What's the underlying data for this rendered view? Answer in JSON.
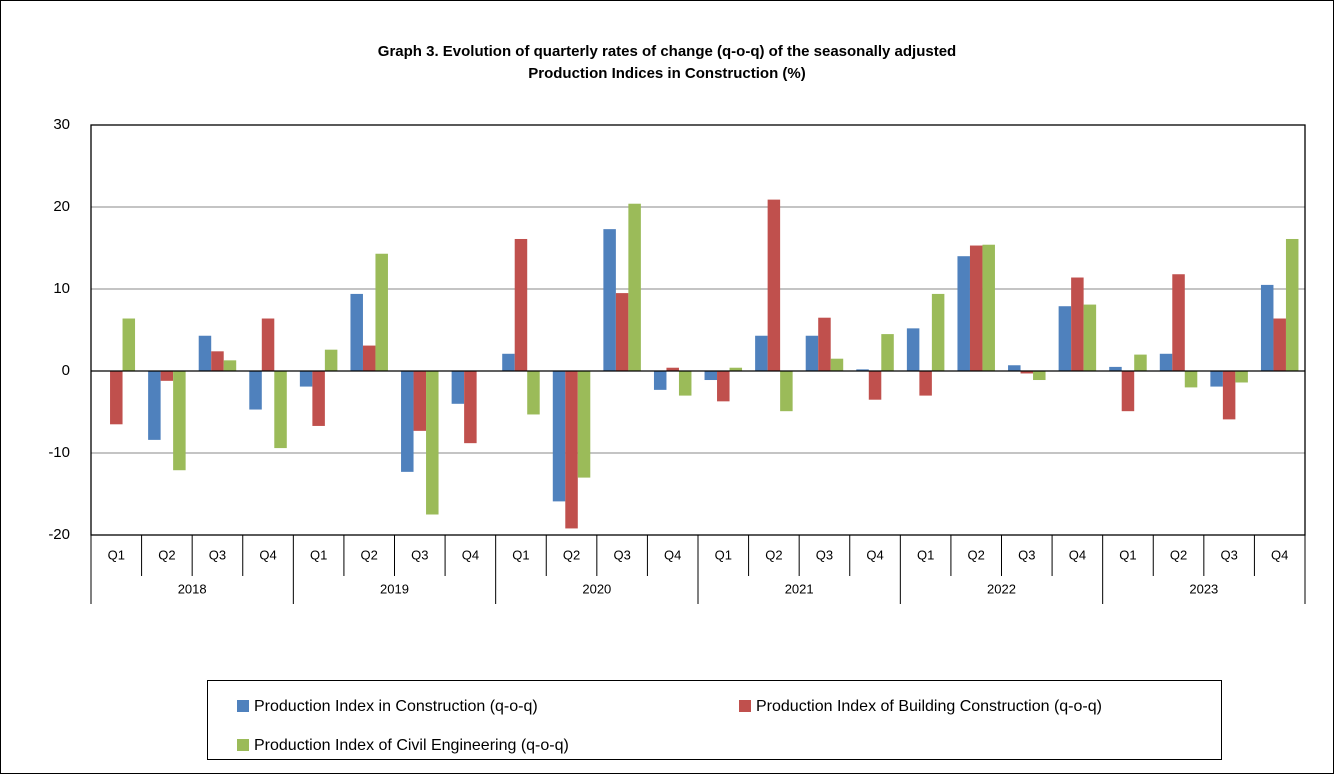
{
  "chart_data": {
    "type": "bar",
    "title": [
      "Graph 3. Evolution of quarterly rates of change (q-o-q) of the seasonally adjusted",
      "Production Indices in Construction (%)"
    ],
    "categories": [
      "Q1",
      "Q2",
      "Q3",
      "Q4",
      "Q1",
      "Q2",
      "Q3",
      "Q4",
      "Q1",
      "Q2",
      "Q3",
      "Q4",
      "Q1",
      "Q2",
      "Q3",
      "Q4",
      "Q1",
      "Q2",
      "Q3",
      "Q4",
      "Q1",
      "Q2",
      "Q3",
      "Q4"
    ],
    "groups": [
      "2018",
      "2019",
      "2020",
      "2021",
      "2022",
      "2023"
    ],
    "series": [
      {
        "name": "Production Index in Construction (q-o-q)",
        "color": "#4f81bd",
        "values": [
          0,
          -8.4,
          4.3,
          -4.7,
          -1.9,
          9.4,
          -12.3,
          -4.0,
          2.1,
          -15.9,
          17.3,
          -2.3,
          -1.1,
          4.3,
          4.3,
          0.2,
          5.2,
          14.0,
          0.7,
          7.9,
          0.5,
          2.1,
          -1.9,
          10.5
        ]
      },
      {
        "name": "Production Index of Building  Construction (q-o-q)",
        "color": "#c0504d",
        "values": [
          -6.5,
          -1.2,
          2.4,
          6.4,
          -6.7,
          3.1,
          -7.3,
          -8.8,
          16.1,
          -19.2,
          9.5,
          0.4,
          -3.7,
          20.9,
          6.5,
          -3.5,
          -3.0,
          15.3,
          -0.3,
          11.4,
          -4.9,
          11.8,
          -5.9,
          6.4
        ]
      },
      {
        "name": "Production Index of Civil Engineering (q-o-q)",
        "color": "#9bbb59",
        "values": [
          6.4,
          -12.1,
          1.3,
          -9.4,
          2.6,
          14.3,
          -17.5,
          0,
          -5.3,
          -13.0,
          20.4,
          -3.0,
          0.4,
          -4.9,
          1.5,
          4.5,
          9.4,
          15.4,
          -1.1,
          8.1,
          2.0,
          -2.0,
          -1.4,
          16.1
        ]
      }
    ],
    "ylim": [
      -20,
      30
    ],
    "yticks": [
      -20,
      -10,
      0,
      10,
      20,
      30
    ],
    "grid": true,
    "legend": "bottom"
  }
}
